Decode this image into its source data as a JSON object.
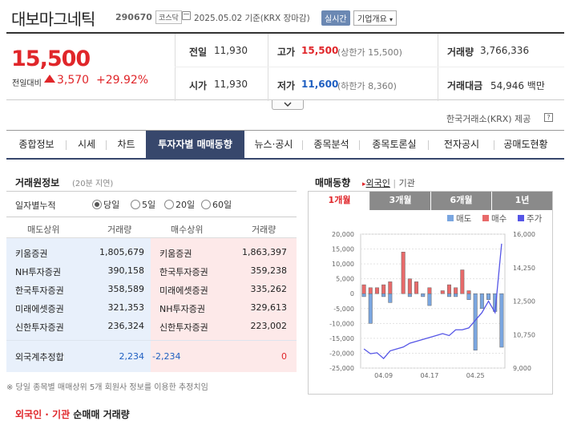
{
  "header": {
    "title": "대보마그네틱",
    "code": "290670",
    "market": "코스닥",
    "date": "2025.05.02 기준(KRX 장마감)",
    "live_btn": "실시간",
    "company_btn": "기업개요"
  },
  "quote": {
    "price": "15,500",
    "change_label": "전일대비",
    "change": "3,570",
    "pct": "+29.92%"
  },
  "stats": {
    "prev_l": "전일",
    "prev": "11,930",
    "open_l": "시가",
    "open": "11,930",
    "high_l": "고가",
    "high": "15,500",
    "upper": "(상한가 15,500)",
    "low_l": "저가",
    "low": "11,600",
    "lower": "(하한가 8,360)",
    "vol_l": "거래량",
    "vol": "3,766,336",
    "amt_l": "거래대금",
    "amt": "54,946 백만"
  },
  "provider": "한국거래소(KRX) 제공",
  "tabs": [
    "종합정보",
    "시세",
    "차트",
    "투자자별 매매동향",
    "뉴스·공시",
    "종목분석",
    "종목토론실",
    "전자공시",
    "공매도현황"
  ],
  "left": {
    "title": "거래원정보",
    "note": "(20분 지연)",
    "period_label": "일자별누적",
    "periods": [
      "당일",
      "5일",
      "20일",
      "60일"
    ],
    "headers": [
      "매도상위",
      "거래량",
      "매수상위",
      "거래량"
    ],
    "sell": [
      {
        "name": "키움증권",
        "vol": "1,805,679"
      },
      {
        "name": "NH투자증권",
        "vol": "390,158"
      },
      {
        "name": "한국투자증권",
        "vol": "358,589"
      },
      {
        "name": "미래에셋증권",
        "vol": "321,353"
      },
      {
        "name": "신한투자증권",
        "vol": "236,324"
      }
    ],
    "buy": [
      {
        "name": "키움증권",
        "vol": "1,863,397"
      },
      {
        "name": "한국투자증권",
        "vol": "359,238"
      },
      {
        "name": "미래에셋증권",
        "vol": "335,262"
      },
      {
        "name": "NH투자증권",
        "vol": "329,613"
      },
      {
        "name": "신한투자증권",
        "vol": "223,002"
      }
    ],
    "foreign_label": "외국계추정합",
    "foreign_sell": "2,234",
    "foreign_net": "-2,234",
    "foreign_buy": "0",
    "footnote": "※ 당일 종목별 매매상위 5개 회원사 정보를 이용한 추정치임"
  },
  "bottom_title": {
    "a": "외국인 · 기관",
    "b": " 순매매 거래량"
  },
  "chart_panel": {
    "title": "매매동향",
    "opt1": "외국인",
    "opt2": "기관",
    "periods": [
      "1개월",
      "3개월",
      "6개월",
      "1년"
    ],
    "legend": [
      "매도",
      "매수",
      "주가"
    ]
  },
  "colors": {
    "sell": "#7aa6e0",
    "buy": "#e86a6a",
    "price": "#5555e6",
    "up": "#e0262a",
    "down": "#1f5fc1"
  },
  "chart_data": {
    "type": "bar",
    "left_axis": {
      "ticks": [
        "20,000",
        "15,000",
        "10,000",
        "5,000",
        "0",
        "-5,000",
        "-10,000",
        "-15,000",
        "-20,000",
        "-25,000"
      ],
      "ylim": [
        -25000,
        20000
      ]
    },
    "right_axis": {
      "ticks": [
        "16,000",
        "14,250",
        "12,500",
        "10,750",
        "9,000"
      ],
      "ylim": [
        9000,
        16000
      ]
    },
    "x_ticks": [
      "04.09",
      "04.17",
      "04.25"
    ],
    "series": [
      {
        "name": "매도",
        "type": "bar",
        "values": [
          -1000,
          -10000,
          0,
          -1000,
          -3000,
          0,
          0,
          -1000,
          0,
          -1000,
          -4000,
          0,
          0,
          -1000,
          -1000,
          0,
          -2000,
          -19000,
          -5000,
          -2000,
          -6000,
          -18000
        ]
      },
      {
        "name": "매수",
        "type": "bar",
        "values": [
          3000,
          2000,
          2000,
          3000,
          4000,
          0,
          14000,
          5000,
          4000,
          0,
          2000,
          0,
          1000,
          3000,
          2000,
          8000,
          1000,
          0,
          0,
          0,
          0,
          0
        ]
      },
      {
        "name": "주가",
        "type": "line",
        "values": [
          10000,
          9750,
          9800,
          9500,
          9900,
          10000,
          10100,
          10300,
          10400,
          10500,
          10600,
          10700,
          10800,
          10700,
          11000,
          11000,
          11100,
          11500,
          11900,
          12500,
          11900,
          15500
        ]
      }
    ]
  }
}
